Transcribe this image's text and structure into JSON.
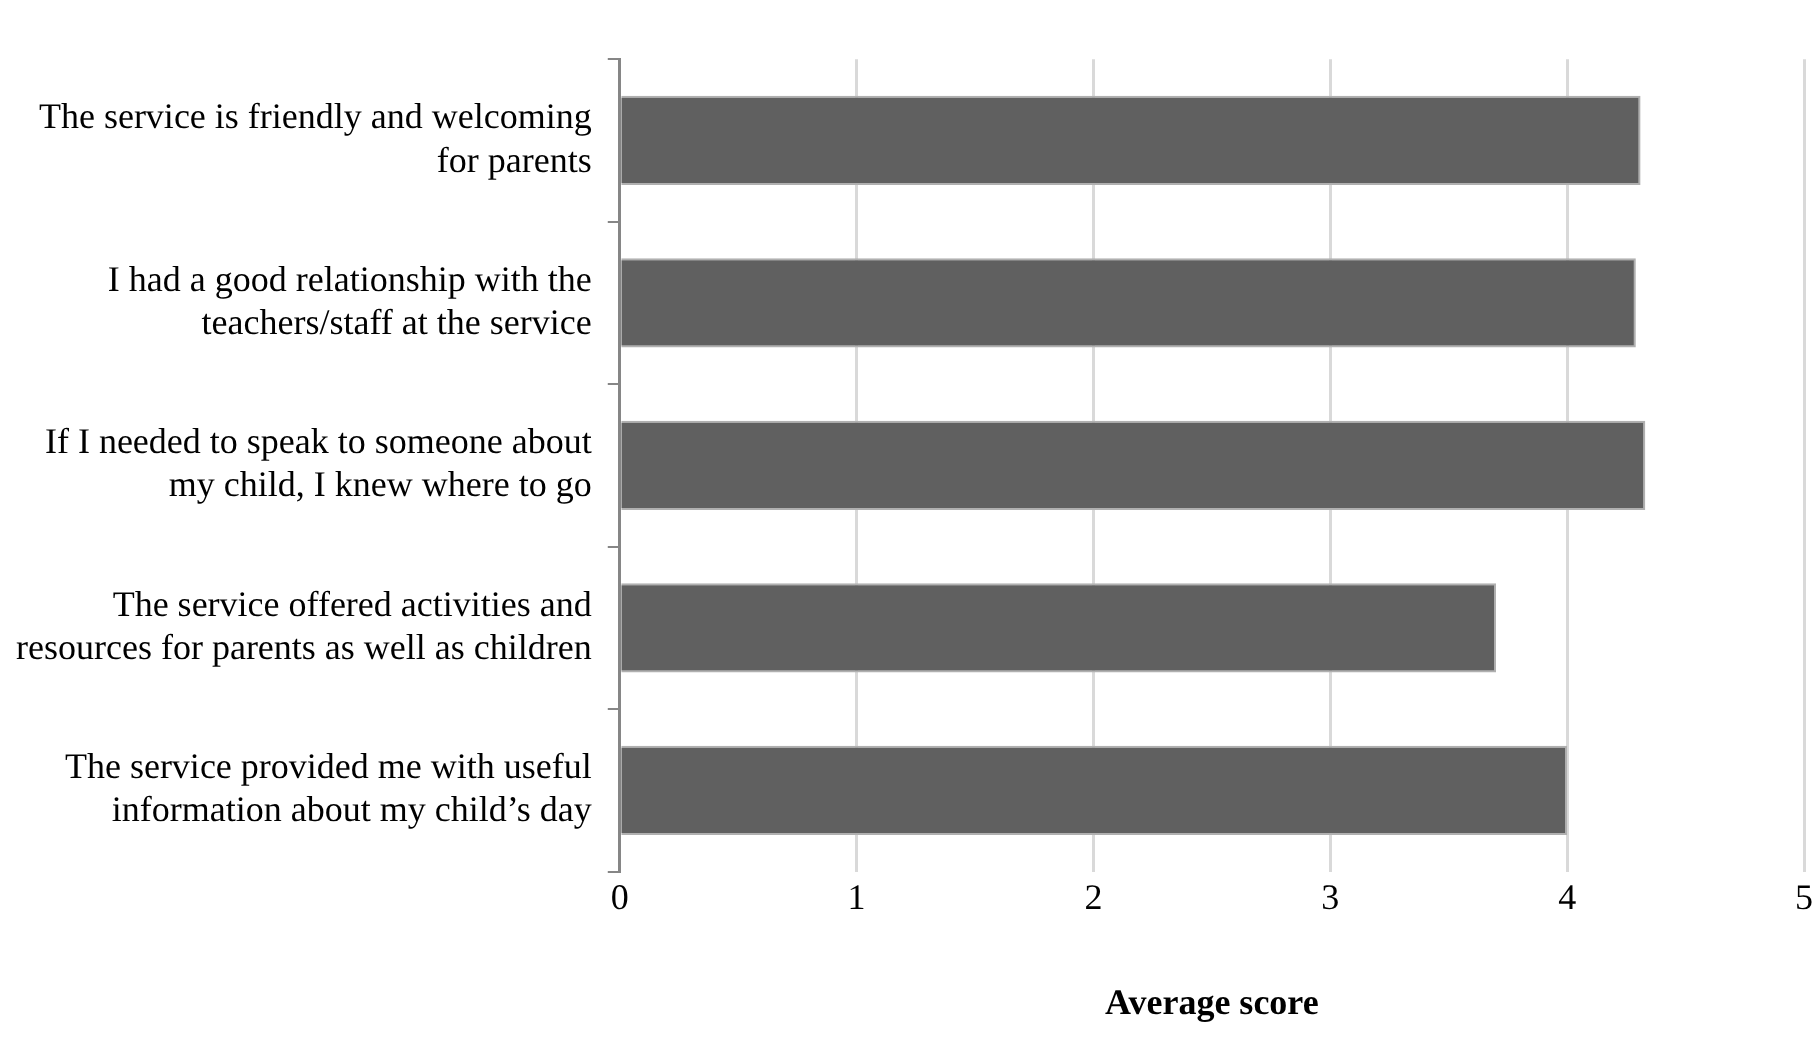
{
  "chart_data": {
    "type": "bar",
    "orientation": "horizontal",
    "xlabel": "Average score",
    "categories": [
      "The service is friendly and welcoming for parents",
      "I had a good relationship with the teachers/staff at the service",
      "If I needed to speak to someone about my child, I knew where to go",
      "The service offered activities and resources for parents as well as children",
      "The service provided me with useful information about my child’s day"
    ],
    "values": [
      4.31,
      4.29,
      4.33,
      3.7,
      4.0
    ],
    "color": "#606060",
    "xlim": [
      0,
      5
    ],
    "xticks": [
      0,
      1,
      2,
      3,
      4,
      5
    ],
    "grid": "x",
    "legend": false
  }
}
